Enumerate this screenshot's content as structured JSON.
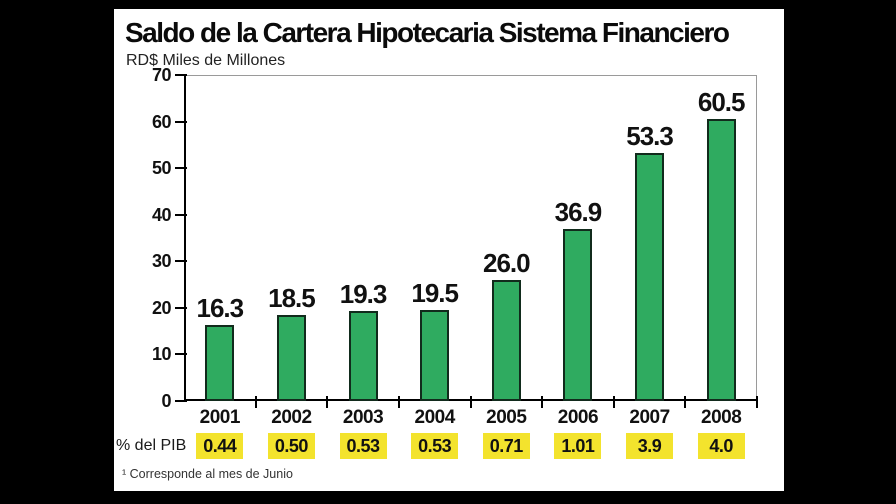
{
  "title": "Saldo de la Cartera Hipotecaria Sistema Financiero",
  "subtitle": "RD$ Miles de Millones",
  "chart_data": {
    "type": "bar",
    "title": "Saldo de la Cartera Hipotecaria Sistema Financiero",
    "ylabel": "RD$ Miles de Millones",
    "categories": [
      "2001",
      "2002",
      "2003",
      "2004",
      "2005",
      "2006",
      "2007",
      "2008"
    ],
    "values": [
      16.3,
      18.5,
      19.3,
      19.5,
      26.0,
      36.9,
      53.3,
      60.5
    ],
    "value_labels": [
      "16.3",
      "18.5",
      "19.3",
      "19.5",
      "26.0",
      "36.9",
      "53.3",
      "60.5"
    ],
    "ylim": [
      0,
      70
    ],
    "ytick_step": 10,
    "grid": false,
    "legend": false
  },
  "pib_row": {
    "label": "% del PIB",
    "values": [
      "0.44",
      "0.50",
      "0.53",
      "0.53",
      "0.71",
      "1.01",
      "3.9",
      "4.0"
    ]
  },
  "footnote": "¹ Corresponde al mes de Junio",
  "colors": {
    "background": "#000000",
    "panel": "#ffffff",
    "bar_fill": "#2fab60",
    "bar_border": "#112b1c",
    "highlight_yellow": "#f3e32d",
    "axis_black": "#000000",
    "plot_border_gray": "#9a9a9a",
    "text": "#111111"
  }
}
